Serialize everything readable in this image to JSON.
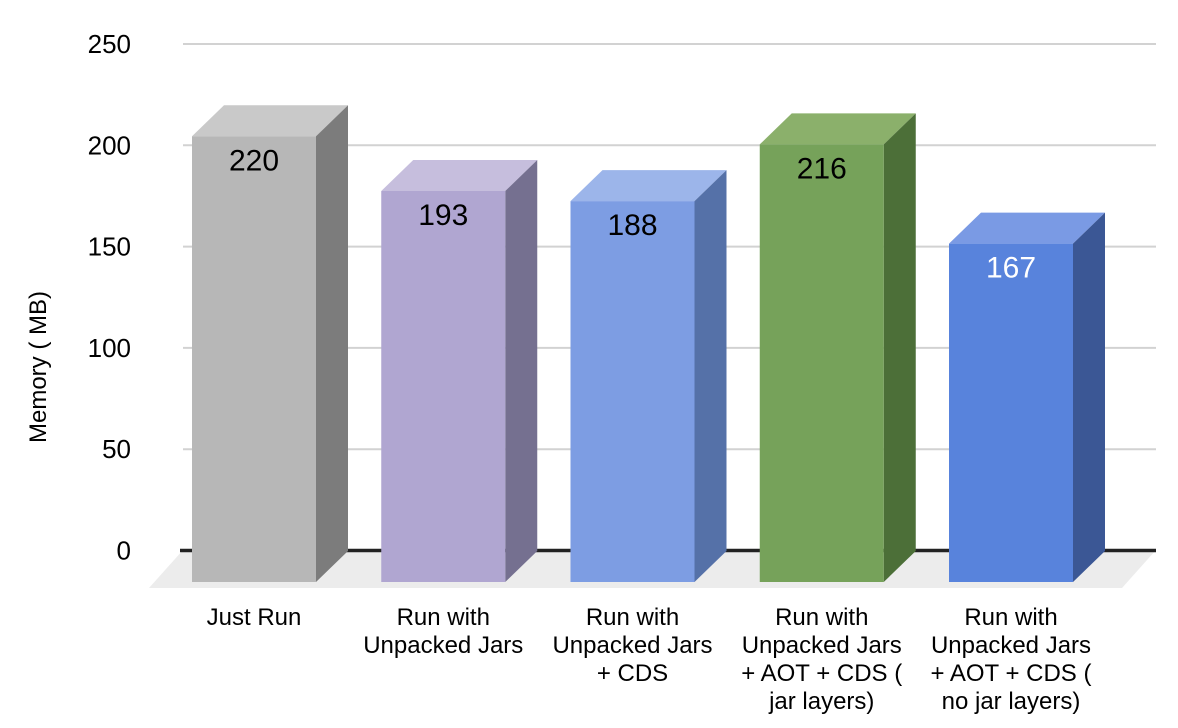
{
  "chart_data": {
    "type": "bar",
    "variant": "3d-column",
    "title": "",
    "xlabel": "",
    "ylabel": "Memory ( MB)",
    "ylim": [
      0,
      250
    ],
    "yticks": [
      0,
      50,
      100,
      150,
      200,
      250
    ],
    "grid": true,
    "legend_position": "none",
    "background": "#ffffff",
    "categories": [
      "Just Run",
      "Run with Unpacked Jars",
      "Run with Unpacked Jars + CDS",
      "Run with Unpacked Jars + AOT + CDS ( jar layers)",
      "Run with Unpacked Jars + AOT + CDS ( no jar layers)"
    ],
    "values": [
      220,
      193,
      188,
      216,
      167
    ],
    "bars": [
      {
        "category": "Just Run",
        "label_lines": [
          "Just Run"
        ],
        "value": 220,
        "front_color": "#b7b7b7",
        "top_color": "#c9c9c9",
        "side_color": "#7c7c7c",
        "value_color": "#000000"
      },
      {
        "category": "Run with Unpacked Jars",
        "label_lines": [
          "Run with",
          "Unpacked Jars"
        ],
        "value": 193,
        "front_color": "#b0a6d1",
        "top_color": "#c6bedd",
        "side_color": "#757090",
        "value_color": "#000000"
      },
      {
        "category": "Run with Unpacked Jars + CDS",
        "label_lines": [
          "Run with",
          "Unpacked Jars",
          "+ CDS"
        ],
        "value": 188,
        "front_color": "#7d9de3",
        "top_color": "#9cb5ea",
        "side_color": "#5571a8",
        "value_color": "#000000"
      },
      {
        "category": "Run with Unpacked Jars + AOT + CDS ( jar layers)",
        "label_lines": [
          "Run with",
          "Unpacked Jars",
          "+ AOT + CDS (",
          "jar layers)"
        ],
        "value": 216,
        "front_color": "#76a25a",
        "top_color": "#8bb06b",
        "side_color": "#4c6f38",
        "value_color": "#000000"
      },
      {
        "category": "Run with Unpacked Jars + AOT + CDS ( no jar layers)",
        "label_lines": [
          "Run with",
          "Unpacked Jars",
          "+ AOT + CDS (",
          "no jar layers)"
        ],
        "value": 167,
        "front_color": "#5883dc",
        "top_color": "#7a9ae4",
        "side_color": "#3b5795",
        "value_color": "#ffffff"
      }
    ],
    "colors": {
      "gridline": "#d2d2d2",
      "axis_line": "#222222",
      "floor": "#ececec",
      "tick_text": "#000000",
      "category_text": "#000000",
      "value_text_default": "#000000",
      "axis_title_text": "#000000"
    }
  }
}
